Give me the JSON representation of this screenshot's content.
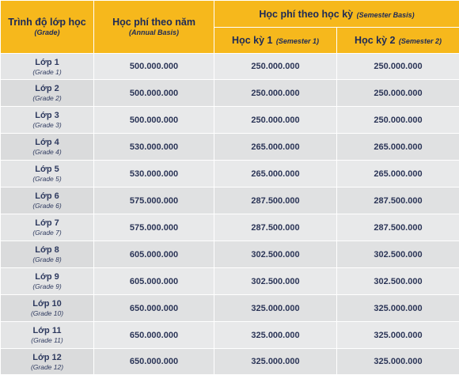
{
  "header": {
    "grade_label": "Trình độ lớp học",
    "grade_sub": "(Grade)",
    "annual_label": "Học phí theo năm",
    "annual_sub": "(Annual Basis)",
    "semester_label": "Học phí theo học kỳ",
    "semester_sub": "(Semester Basis)",
    "sem1_label": "Học kỳ 1",
    "sem1_sub": "(Semester 1)",
    "sem2_label": "Học kỳ 2",
    "sem2_sub": "(Semester 2)"
  },
  "rows": [
    {
      "grade": "Lớp 1",
      "grade_en": "(Grade 1)",
      "annual": "500.000.000",
      "sem1": "250.000.000",
      "sem2": "250.000.000"
    },
    {
      "grade": "Lớp 2",
      "grade_en": "(Grade 2)",
      "annual": "500.000.000",
      "sem1": "250.000.000",
      "sem2": "250.000.000"
    },
    {
      "grade": "Lớp 3",
      "grade_en": "(Grade 3)",
      "annual": "500.000.000",
      "sem1": "250.000.000",
      "sem2": "250.000.000"
    },
    {
      "grade": "Lớp 4",
      "grade_en": "(Grade 4)",
      "annual": "530.000.000",
      "sem1": "265.000.000",
      "sem2": "265.000.000"
    },
    {
      "grade": "Lớp 5",
      "grade_en": "(Grade 5)",
      "annual": "530.000.000",
      "sem1": "265.000.000",
      "sem2": "265.000.000"
    },
    {
      "grade": "Lớp 6",
      "grade_en": "(Grade 6)",
      "annual": "575.000.000",
      "sem1": "287.500.000",
      "sem2": "287.500.000"
    },
    {
      "grade": "Lớp 7",
      "grade_en": "(Grade 7)",
      "annual": "575.000.000",
      "sem1": "287.500.000",
      "sem2": "287.500.000"
    },
    {
      "grade": "Lớp 8",
      "grade_en": "(Grade 8)",
      "annual": "605.000.000",
      "sem1": "302.500.000",
      "sem2": "302.500.000"
    },
    {
      "grade": "Lớp 9",
      "grade_en": "(Grade 9)",
      "annual": "605.000.000",
      "sem1": "302.500.000",
      "sem2": "302.500.000"
    },
    {
      "grade": "Lớp 10",
      "grade_en": "(Grade 10)",
      "annual": "650.000.000",
      "sem1": "325.000.000",
      "sem2": "325.000.000"
    },
    {
      "grade": "Lớp 11",
      "grade_en": "(Grade 11)",
      "annual": "650.000.000",
      "sem1": "325.000.000",
      "sem2": "325.000.000"
    },
    {
      "grade": "Lớp 12",
      "grade_en": "(Grade 12)",
      "annual": "650.000.000",
      "sem1": "325.000.000",
      "sem2": "325.000.000"
    }
  ],
  "colors": {
    "header_bg": "#f6b81c",
    "header_text": "#1d2a57",
    "cell_bg": "#e4e5e6",
    "value_text": "#2b3557"
  }
}
